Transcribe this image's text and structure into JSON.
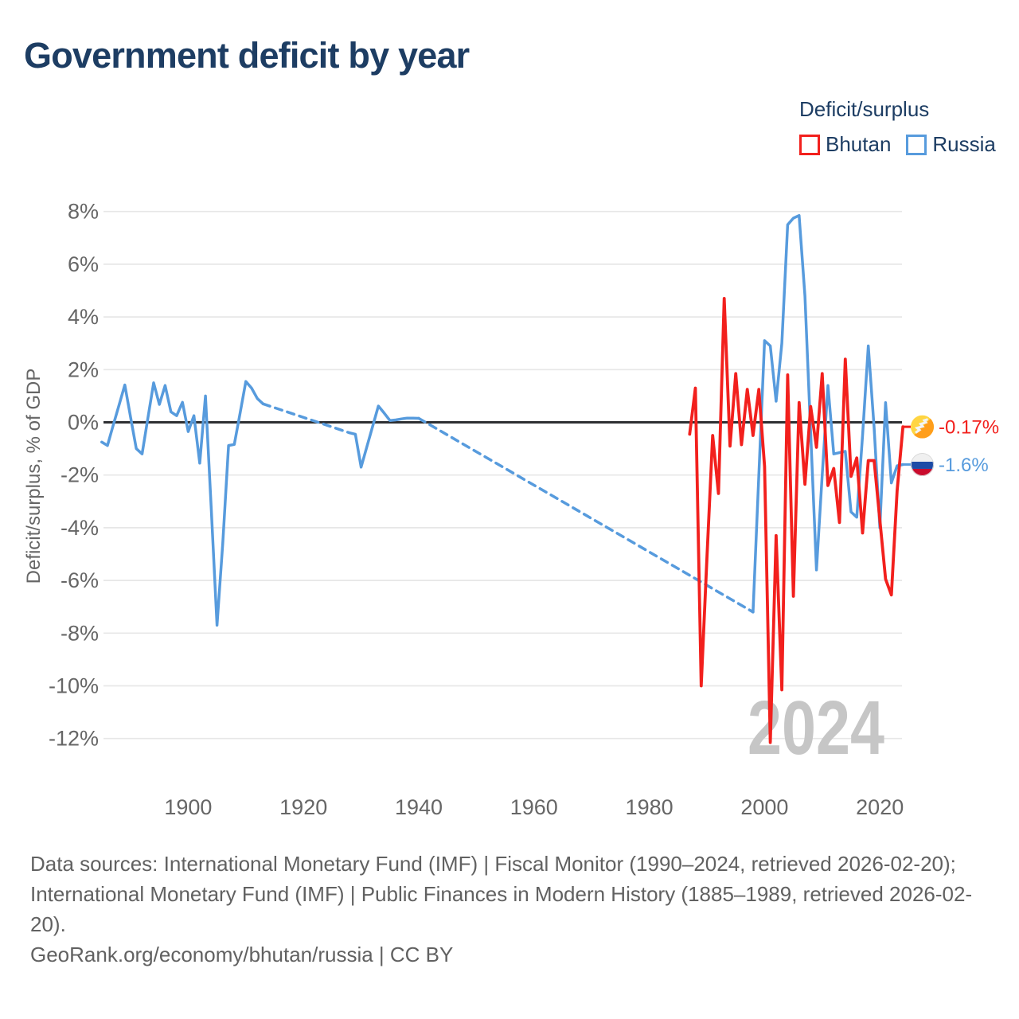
{
  "title": "Government deficit by year",
  "legend": {
    "title": "Deficit/surplus",
    "items": [
      {
        "label": "Bhutan",
        "color": "#f2201d"
      },
      {
        "label": "Russia",
        "color": "#579bdd"
      }
    ]
  },
  "watermark": "2024",
  "footer": {
    "lines": [
      "Data sources: International Monetary Fund (IMF) | Fiscal Monitor (1990–2024, retrieved 2026-02-20);",
      "International Monetary Fund (IMF) | Public Finances in Modern History (1885–1989, retrieved 2026-02-",
      "20).",
      "GeoRank.org/economy/bhutan/russia | CC BY"
    ]
  },
  "chart_data": {
    "type": "line",
    "title": "Government deficit by year",
    "xlabel": "",
    "ylabel": "Deficit/surplus, % of GDP",
    "ylim": [
      -12,
      8
    ],
    "xlim": [
      1885,
      2024
    ],
    "grid": "horizontal",
    "legend_position": "top-right",
    "y_ticks": [
      8,
      6,
      4,
      2,
      0,
      -2,
      -4,
      -6,
      -8,
      -10,
      -12
    ],
    "y_tick_suffix": "%",
    "x_ticks": [
      1900,
      1920,
      1940,
      1960,
      1980,
      2000,
      2020
    ],
    "zero_line": 0,
    "series": [
      {
        "name": "Russia",
        "color": "#579bdd",
        "width": 3.5,
        "segments": [
          {
            "style": "solid",
            "points": [
              [
                1885,
                -0.75
              ],
              [
                1886,
                -0.88
              ],
              [
                1887,
                -0.1
              ],
              [
                1888,
                0.65
              ],
              [
                1889,
                1.42
              ],
              [
                1890,
                0.2
              ],
              [
                1891,
                -1.0
              ],
              [
                1892,
                -1.2
              ],
              [
                1893,
                0.15
              ],
              [
                1894,
                1.5
              ],
              [
                1895,
                0.68
              ],
              [
                1896,
                1.4
              ],
              [
                1897,
                0.4
              ],
              [
                1898,
                0.25
              ],
              [
                1899,
                0.76
              ],
              [
                1900,
                -0.35
              ],
              [
                1901,
                0.25
              ],
              [
                1902,
                -1.55
              ],
              [
                1903,
                1.0
              ],
              [
                1904,
                -3.3
              ],
              [
                1905,
                -7.7
              ],
              [
                1906,
                -4.6
              ],
              [
                1907,
                -0.88
              ],
              [
                1908,
                -0.84
              ],
              [
                1909,
                0.35
              ],
              [
                1910,
                1.55
              ],
              [
                1911,
                1.3
              ],
              [
                1912,
                0.9
              ],
              [
                1913,
                0.7
              ]
            ]
          },
          {
            "style": "dashed",
            "points": [
              [
                1913,
                0.7
              ],
              [
                1928,
                -0.4
              ]
            ]
          },
          {
            "style": "solid",
            "points": [
              [
                1928,
                -0.4
              ],
              [
                1929,
                -0.45
              ],
              [
                1930,
                -1.7
              ],
              [
                1931,
                -0.93
              ],
              [
                1932,
                -0.15
              ],
              [
                1933,
                0.62
              ],
              [
                1934,
                0.35
              ],
              [
                1935,
                0.07
              ],
              [
                1936,
                0.09
              ],
              [
                1937,
                0.13
              ],
              [
                1938,
                0.16
              ],
              [
                1939,
                0.16
              ],
              [
                1940,
                0.15
              ]
            ]
          },
          {
            "style": "dashed",
            "points": [
              [
                1940,
                0.15
              ],
              [
                1998,
                -7.2
              ]
            ]
          },
          {
            "style": "solid",
            "points": [
              [
                1998,
                -7.2
              ],
              [
                1999,
                -2.0
              ],
              [
                2000,
                3.1
              ],
              [
                2001,
                2.9
              ],
              [
                2002,
                0.8
              ],
              [
                2003,
                3.0
              ],
              [
                2004,
                7.5
              ],
              [
                2005,
                7.75
              ],
              [
                2006,
                7.85
              ],
              [
                2007,
                4.8
              ],
              [
                2008,
                -0.4
              ],
              [
                2009,
                -5.6
              ],
              [
                2010,
                -2.0
              ],
              [
                2011,
                1.4
              ],
              [
                2012,
                -1.2
              ],
              [
                2013,
                -1.15
              ],
              [
                2014,
                -1.1
              ],
              [
                2015,
                -3.4
              ],
              [
                2016,
                -3.6
              ],
              [
                2017,
                -0.5
              ],
              [
                2018,
                2.9
              ],
              [
                2019,
                -0.2
              ],
              [
                2020,
                -4.0
              ],
              [
                2021,
                0.75
              ],
              [
                2022,
                -2.3
              ],
              [
                2023,
                -1.65
              ],
              [
                2024,
                -1.6
              ]
            ]
          }
        ]
      },
      {
        "name": "Bhutan",
        "color": "#f2201d",
        "width": 3.8,
        "segments": [
          {
            "style": "solid",
            "points": [
              [
                1987,
                -0.45
              ],
              [
                1988,
                1.3
              ],
              [
                1989,
                -10.0
              ],
              [
                1990,
                -5.15
              ],
              [
                1991,
                -0.5
              ],
              [
                1992,
                -2.7
              ],
              [
                1993,
                4.7
              ],
              [
                1994,
                -0.9
              ],
              [
                1995,
                1.85
              ],
              [
                1996,
                -0.85
              ],
              [
                1997,
                1.25
              ],
              [
                1998,
                -0.5
              ],
              [
                1999,
                1.25
              ],
              [
                2000,
                -1.67
              ],
              [
                2001,
                -12.15
              ],
              [
                2002,
                -4.3
              ],
              [
                2003,
                -10.15
              ],
              [
                2004,
                1.8
              ],
              [
                2005,
                -6.6
              ],
              [
                2006,
                0.75
              ],
              [
                2007,
                -2.35
              ],
              [
                2008,
                0.6
              ],
              [
                2009,
                -0.95
              ],
              [
                2010,
                1.85
              ],
              [
                2011,
                -2.4
              ],
              [
                2012,
                -1.75
              ],
              [
                2013,
                -3.8
              ],
              [
                2014,
                2.4
              ],
              [
                2015,
                -2.05
              ],
              [
                2016,
                -1.35
              ],
              [
                2017,
                -4.2
              ],
              [
                2018,
                -1.45
              ],
              [
                2019,
                -1.45
              ],
              [
                2020,
                -3.7
              ],
              [
                2021,
                -5.95
              ],
              [
                2022,
                -6.55
              ],
              [
                2023,
                -2.6
              ],
              [
                2024,
                -0.17
              ]
            ]
          }
        ]
      }
    ],
    "end_labels": [
      {
        "series": "Bhutan",
        "label": "-0.17%",
        "value": -0.17,
        "color": "#f2201d",
        "flag": "bhutan"
      },
      {
        "series": "Russia",
        "label": "-1.6%",
        "value": -1.6,
        "color": "#579bdd",
        "flag": "russia"
      }
    ]
  }
}
